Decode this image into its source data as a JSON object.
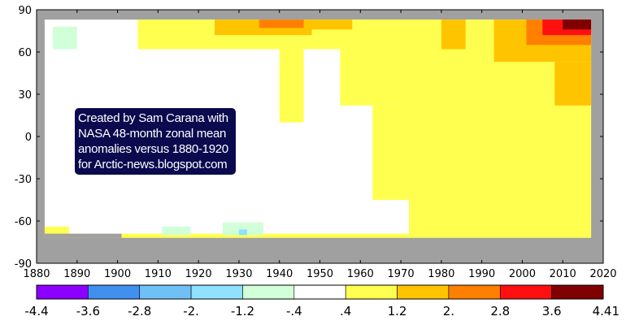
{
  "chart_data": {
    "type": "heatmap",
    "title": "",
    "xlabel": "",
    "ylabel": "",
    "xlim": [
      1880,
      2020
    ],
    "ylim": [
      -90,
      90
    ],
    "x_ticks": [
      "1880",
      "1890",
      "1900",
      "1910",
      "1920",
      "1930",
      "1940",
      "1950",
      "1960",
      "1970",
      "1980",
      "1990",
      "2000",
      "2010",
      "2020"
    ],
    "y_ticks": [
      "90",
      "60",
      "30",
      "0",
      "-30",
      "-60",
      "-90"
    ],
    "background_color": "#a0a0a0",
    "colorbar": {
      "labels": [
        "-4.4",
        "-3.6",
        "-2.8",
        "-2.",
        "-1.2",
        "-.4",
        ".4",
        "1.2",
        "2.",
        "2.8",
        "3.6",
        "4.41"
      ],
      "colors": [
        "#8b00ff",
        "#4090f0",
        "#70c0f8",
        "#90e0ff",
        "#d0ffd8",
        "#ffffff",
        "#ffff50",
        "#ffc400",
        "#ff8000",
        "#ff1010",
        "#800000"
      ]
    },
    "data_extent": {
      "x": [
        1882,
        2017
      ],
      "y": [
        -72,
        83
      ]
    },
    "regions": [
      {
        "color": "#ffff50",
        "x0": 1972,
        "x1": 2017,
        "y0": -70,
        "y1": 83
      },
      {
        "color": "#ffff50",
        "x0": 1905,
        "x1": 1972,
        "y0": 62,
        "y1": 83
      },
      {
        "color": "#ffff50",
        "x0": 1955,
        "x1": 1972,
        "y0": 22,
        "y1": 62
      },
      {
        "color": "#ffff50",
        "x0": 1963,
        "x1": 1972,
        "y0": -45,
        "y1": 22
      },
      {
        "color": "#ffff50",
        "x0": 1940,
        "x1": 1946,
        "y0": 10,
        "y1": 62
      },
      {
        "color": "#ffff50",
        "x0": 1882,
        "x1": 2017,
        "y0": -72,
        "y1": -69
      },
      {
        "color": "#ffff50",
        "x0": 1882,
        "x1": 1888,
        "y0": -69,
        "y1": -64
      },
      {
        "color": "#ffff50",
        "x0": 1960,
        "x1": 1990,
        "y0": 73,
        "y1": 83
      },
      {
        "color": "#ffc400",
        "x0": 1924,
        "x1": 1948,
        "y0": 72,
        "y1": 83
      },
      {
        "color": "#ffc400",
        "x0": 1947,
        "x1": 1958,
        "y0": 76,
        "y1": 83
      },
      {
        "color": "#ffc400",
        "x0": 1980,
        "x1": 1986,
        "y0": 62,
        "y1": 83
      },
      {
        "color": "#ffc400",
        "x0": 1993,
        "x1": 2017,
        "y0": 53,
        "y1": 83
      },
      {
        "color": "#ffc400",
        "x0": 2008,
        "x1": 2017,
        "y0": 22,
        "y1": 53
      },
      {
        "color": "#ff8000",
        "x0": 1935,
        "x1": 1946,
        "y0": 77,
        "y1": 83
      },
      {
        "color": "#ff8000",
        "x0": 2001,
        "x1": 2017,
        "y0": 65,
        "y1": 83
      },
      {
        "color": "#ff1010",
        "x0": 2005,
        "x1": 2017,
        "y0": 72,
        "y1": 83
      },
      {
        "color": "#800000",
        "x0": 2010,
        "x1": 2017,
        "y0": 76,
        "y1": 83
      },
      {
        "color": "#d0ffd8",
        "x0": 1884,
        "x1": 1890,
        "y0": 62,
        "y1": 78
      },
      {
        "color": "#d0ffd8",
        "x0": 1926,
        "x1": 1936,
        "y0": -70,
        "y1": -61
      },
      {
        "color": "#d0ffd8",
        "x0": 1911,
        "x1": 1918,
        "y0": -70,
        "y1": -64
      },
      {
        "color": "#90e0ff",
        "x0": 1930,
        "x1": 1932,
        "y0": -70,
        "y1": -66
      }
    ],
    "missing_regions": [
      {
        "x0": 1882,
        "x1": 2017,
        "y0": -90,
        "y1": -72
      },
      {
        "x0": 1882,
        "x1": 1901,
        "y0": -72,
        "y1": -69
      }
    ],
    "annotation": [
      "Created by Sam Carana with",
      "NASA 48-month zonal mean",
      "anomalies versus 1880-1920",
      "for Arctic-news.blogspot.com"
    ]
  }
}
